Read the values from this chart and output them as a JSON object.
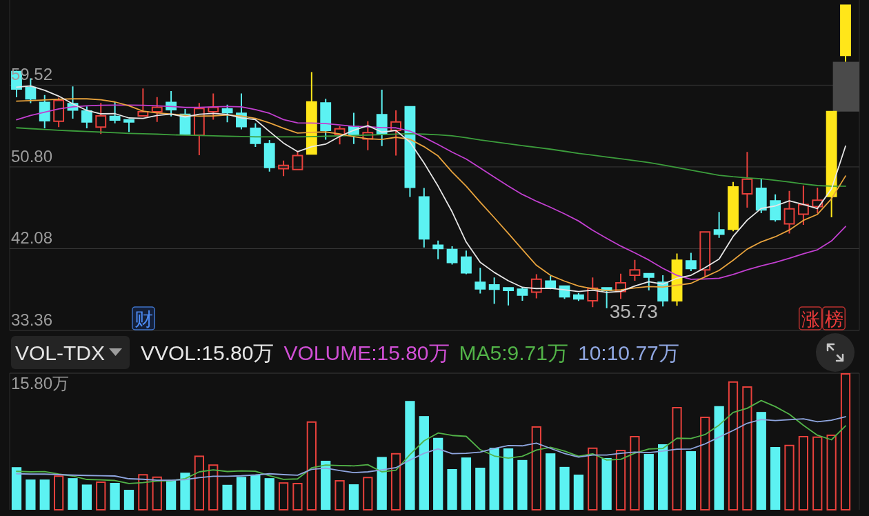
{
  "chart_data": [
    {
      "type": "candlestick",
      "categories": [
        null,
        null,
        null,
        null,
        null,
        null,
        null,
        null,
        null,
        null,
        null,
        null,
        null,
        null,
        null,
        null,
        null,
        null,
        null,
        null,
        null,
        null,
        null,
        null,
        null,
        null,
        null,
        null,
        null,
        null,
        null,
        null,
        null,
        null,
        null,
        null,
        null,
        null,
        null,
        null,
        null,
        null,
        null,
        null,
        null,
        null,
        null,
        null,
        null,
        null,
        null,
        null,
        null,
        null,
        null,
        null,
        null,
        null,
        null,
        null
      ],
      "ohlc": [
        [
          60.96,
          61.05,
          58.22,
          59.11
        ],
        [
          59.27,
          60.25,
          57.6,
          58.06
        ],
        [
          57.67,
          58.47,
          54.92,
          55.72
        ],
        [
          55.67,
          58.19,
          55.04,
          57.89
        ],
        [
          57.55,
          59.38,
          55.95,
          56.86
        ],
        [
          56.75,
          57.25,
          54.92,
          55.6
        ],
        [
          55.04,
          57.62,
          54.3,
          56.24
        ],
        [
          56.18,
          57.71,
          55.45,
          55.79
        ],
        [
          55.81,
          55.81,
          54.53,
          55.59
        ],
        [
          56.24,
          59.16,
          56.22,
          56.68
        ],
        [
          56.68,
          58.24,
          55.6,
          57.16
        ],
        [
          57.67,
          58.88,
          56.18,
          56.91
        ],
        [
          56.41,
          56.98,
          54.23,
          54.3
        ],
        [
          54.18,
          57.62,
          52.05,
          57.03
        ],
        [
          56.68,
          58.63,
          55.83,
          57.14
        ],
        [
          56.98,
          57.44,
          55.56,
          56.59
        ],
        [
          56.52,
          58.63,
          54.8,
          55.1
        ],
        [
          54.92,
          55.45,
          52.93,
          53.32
        ],
        [
          53.27,
          53.66,
          50.3,
          50.75
        ],
        [
          50.61,
          51.48,
          49.82,
          50.96
        ],
        [
          50.52,
          52.51,
          50.52,
          52.01
        ],
        [
          52.17,
          60.91,
          52.17,
          57.73
        ],
        [
          57.62,
          58.06,
          53.7,
          54.69
        ],
        [
          54.23,
          55.14,
          53.2,
          54.87
        ],
        [
          55.1,
          56.57,
          53.25,
          54.23
        ],
        [
          53.77,
          55.67,
          52.58,
          54.46
        ],
        [
          56.36,
          59.04,
          53.02,
          54.3
        ],
        [
          54.69,
          56.82,
          52.01,
          55.6
        ],
        [
          57.21,
          57.21,
          47.59,
          48.62
        ],
        [
          47.59,
          48.55,
          42.21,
          43.13
        ],
        [
          42.44,
          42.95,
          40.96,
          42.1
        ],
        [
          41.99,
          42.33,
          40.38,
          40.61
        ],
        [
          41.18,
          41.87,
          39.35,
          39.51
        ],
        [
          38.5,
          40.04,
          37.29,
          37.8
        ],
        [
          38.21,
          39.0,
          36.19,
          37.75
        ],
        [
          37.91,
          37.91,
          36.03,
          37.63
        ],
        [
          37.75,
          37.93,
          36.53,
          37.13
        ],
        [
          37.45,
          39.35,
          36.79,
          38.83
        ],
        [
          38.62,
          39.17,
          37.75,
          37.93
        ],
        [
          38.09,
          38.09,
          36.72,
          36.95
        ],
        [
          37.13,
          37.34,
          36.51,
          36.72
        ],
        [
          36.53,
          39.0,
          35.85,
          37.87
        ],
        [
          37.91,
          37.91,
          35.73,
          37.63
        ],
        [
          37.52,
          39.42,
          36.72,
          38.43
        ],
        [
          39.24,
          40.89,
          38.66,
          39.81
        ],
        [
          39.42,
          39.42,
          37.63,
          39.05
        ],
        [
          38.5,
          39.24,
          35.92,
          36.53
        ],
        [
          36.53,
          41.57,
          35.99,
          40.84
        ],
        [
          40.77,
          41.64,
          39.69,
          39.97
        ],
        [
          39.81,
          43.86,
          39.12,
          43.86
        ],
        [
          44.09,
          45.99,
          43.24,
          43.63
        ],
        [
          44.16,
          49.2,
          43.93,
          48.67
        ],
        [
          47.93,
          52.4,
          46.45,
          49.49
        ],
        [
          48.51,
          49.54,
          45.87,
          46.22
        ],
        [
          47.18,
          47.87,
          44.96,
          45.19
        ],
        [
          44.73,
          48.24,
          43.7,
          46.33
        ],
        [
          45.76,
          48.81,
          44.62,
          46.79
        ],
        [
          46.56,
          48.58,
          45.87,
          47.25
        ],
        [
          47.66,
          56.7,
          45.42,
          56.7
        ],
        [
          62.7,
          68.04,
          62.01,
          68.04
        ]
      ],
      "colors": [
        "#5cf2f2",
        "#5cf2f2",
        "#5cf2f2",
        "#e8413c",
        "#5cf2f2",
        "#5cf2f2",
        "#e8413c",
        "#5cf2f2",
        "#5cf2f2",
        "#e8413c",
        "#e8413c",
        "#5cf2f2",
        "#5cf2f2",
        "#e8413c",
        "#e8413c",
        "#5cf2f2",
        "#5cf2f2",
        "#5cf2f2",
        "#5cf2f2",
        "#e8413c",
        "#e8413c",
        "#ffe61a",
        "#5cf2f2",
        "#e8413c",
        "#5cf2f2",
        "#e8413c",
        "#5cf2f2",
        "#e8413c",
        "#5cf2f2",
        "#5cf2f2",
        "#5cf2f2",
        "#5cf2f2",
        "#5cf2f2",
        "#5cf2f2",
        "#5cf2f2",
        "#5cf2f2",
        "#5cf2f2",
        "#e8413c",
        "#5cf2f2",
        "#5cf2f2",
        "#5cf2f2",
        "#e8413c",
        "#5cf2f2",
        "#e8413c",
        "#e8413c",
        "#5cf2f2",
        "#5cf2f2",
        "#ffe61a",
        "#5cf2f2",
        "#e8413c",
        "#5cf2f2",
        "#ffe61a",
        "#e8413c",
        "#5cf2f2",
        "#5cf2f2",
        "#e8413c",
        "#e8413c",
        "#e8413c",
        "#ffe61a",
        "#ffe61a"
      ],
      "series": [
        {
          "type": "line",
          "color": "#3c9d3c",
          "values": [
            54.97,
            54.88,
            54.8,
            54.71,
            54.64,
            54.58,
            54.51,
            54.44,
            54.38,
            54.33,
            54.29,
            54.23,
            54.19,
            54.15,
            54.11,
            54.07,
            54.04,
            54.01,
            54.01,
            54.01,
            54.01,
            54.03,
            54.07,
            54.11,
            54.15,
            54.2,
            54.25,
            54.3,
            54.33,
            54.29,
            54.23,
            54.11,
            53.92,
            53.68,
            53.48,
            53.27,
            53.06,
            52.88,
            52.69,
            52.47,
            52.24,
            52.05,
            51.86,
            51.67,
            51.47,
            51.26,
            51.0,
            50.73,
            50.45,
            50.18,
            49.91,
            49.75,
            49.63,
            49.53,
            49.37,
            49.18,
            48.99,
            48.81,
            48.74,
            48.74
          ]
        },
        {
          "type": "line",
          "color": "#c23fd0",
          "values": [
            55.83,
            56.29,
            56.64,
            56.98,
            57.21,
            57.32,
            57.37,
            57.39,
            57.39,
            57.37,
            57.32,
            57.25,
            57.14,
            57.14,
            57.21,
            57.25,
            57.21,
            56.91,
            56.52,
            55.84,
            55.49,
            55.47,
            55.42,
            55.27,
            55.13,
            55.08,
            54.98,
            54.97,
            54.62,
            53.95,
            53.19,
            52.38,
            51.64,
            50.68,
            49.71,
            48.76,
            47.86,
            47.14,
            46.49,
            45.79,
            45.03,
            44.04,
            43.18,
            42.36,
            41.64,
            40.87,
            39.98,
            39.24,
            38.81,
            38.85,
            38.92,
            39.33,
            39.83,
            40.25,
            40.62,
            41.05,
            41.54,
            41.96,
            42.9,
            44.45
          ]
        },
        {
          "type": "line",
          "color": "#e8a33d",
          "values": [
            57.82,
            57.87,
            57.94,
            58.01,
            58.06,
            58.06,
            57.96,
            57.73,
            57.32,
            56.75,
            56.56,
            56.44,
            56.3,
            56.22,
            56.24,
            56.34,
            56.23,
            55.98,
            55.5,
            54.93,
            54.41,
            54.49,
            54.53,
            54.32,
            54.03,
            53.81,
            53.73,
            53.96,
            53.75,
            52.96,
            51.97,
            50.26,
            48.74,
            47.04,
            45.39,
            43.71,
            41.99,
            40.31,
            39.24,
            38.62,
            38.09,
            37.81,
            37.62,
            37.69,
            37.89,
            38.04,
            37.98,
            38.18,
            38.38,
            39.07,
            39.76,
            40.84,
            42.03,
            42.81,
            43.35,
            44.07,
            45.1,
            45.74,
            47.41,
            49.83
          ]
        },
        {
          "type": "line",
          "color": "#e6e6e6",
          "values": [
            59.31,
            59.43,
            58.97,
            58.35,
            57.53,
            56.83,
            56.46,
            56.48,
            56.02,
            55.98,
            56.29,
            56.43,
            56.13,
            56.42,
            56.51,
            56.39,
            56.03,
            55.84,
            54.58,
            53.34,
            52.43,
            52.95,
            53.23,
            54.05,
            54.71,
            55.2,
            54.51,
            54.69,
            53.44,
            51.22,
            48.75,
            46.01,
            42.79,
            40.63,
            39.55,
            38.66,
            37.96,
            37.83,
            37.85,
            37.69,
            37.51,
            37.66,
            37.42,
            37.52,
            38.09,
            38.56,
            38.29,
            38.93,
            39.24,
            40.05,
            40.97,
            43.39,
            45.12,
            46.37,
            46.64,
            47.18,
            46.8,
            46.36,
            48.45,
            53.02
          ]
        }
      ],
      "ylim": [
        33.36,
        68.6
      ],
      "yticks": [
        59.52,
        {
          "value": 50.8,
          "label": "50.80"
        },
        42.08,
        33.36
      ],
      "grid": "y",
      "annotations": [
        "财",
        "涨榜",
        "35.73"
      ]
    },
    {
      "type": "bar",
      "title": "VOL-TDX",
      "legend_title": "VVOL:15.80万",
      "legend": "top",
      "categories": [
        null,
        null,
        null,
        null,
        null,
        null,
        null,
        null,
        null,
        null,
        null,
        null,
        null,
        null,
        null,
        null,
        null,
        null,
        null,
        null,
        null,
        null,
        null,
        null,
        null,
        null,
        null,
        null,
        null,
        null,
        null,
        null,
        null,
        null,
        null,
        null,
        null,
        null,
        null,
        null,
        null,
        null,
        null,
        null,
        null,
        null,
        null,
        null,
        null,
        null,
        null,
        null,
        null,
        null,
        null,
        null,
        null,
        null,
        null,
        null
      ],
      "series": [
        {
          "name": "VOLUME:15.80万",
          "type": "bar",
          "color": "#d04fd4",
          "colors": [
            "#5cf2f2",
            "#5cf2f2",
            "#5cf2f2",
            "#e8413c",
            "#5cf2f2",
            "#5cf2f2",
            "#e8413c",
            "#5cf2f2",
            "#5cf2f2",
            "#e8413c",
            "#e8413c",
            "#5cf2f2",
            "#5cf2f2",
            "#e8413c",
            "#e8413c",
            "#5cf2f2",
            "#5cf2f2",
            "#5cf2f2",
            "#5cf2f2",
            "#e8413c",
            "#e8413c",
            "#e8413c",
            "#5cf2f2",
            "#e8413c",
            "#5cf2f2",
            "#e8413c",
            "#5cf2f2",
            "#e8413c",
            "#5cf2f2",
            "#5cf2f2",
            "#5cf2f2",
            "#5cf2f2",
            "#5cf2f2",
            "#5cf2f2",
            "#5cf2f2",
            "#5cf2f2",
            "#5cf2f2",
            "#e8413c",
            "#5cf2f2",
            "#5cf2f2",
            "#5cf2f2",
            "#e8413c",
            "#5cf2f2",
            "#e8413c",
            "#e8413c",
            "#5cf2f2",
            "#5cf2f2",
            "#e8413c",
            "#5cf2f2",
            "#e8413c",
            "#5cf2f2",
            "#e8413c",
            "#e8413c",
            "#5cf2f2",
            "#5cf2f2",
            "#e8413c",
            "#e8413c",
            "#e8413c",
            "#e8413c",
            "#e8413c"
          ],
          "values": [
            4.93,
            3.5,
            3.5,
            3.97,
            3.66,
            2.92,
            3.27,
            3.11,
            2.31,
            4.13,
            3.85,
            3.43,
            4.29,
            6.27,
            5.25,
            2.89,
            3.81,
            4.07,
            3.66,
            3.18,
            3.11,
            10.23,
            5.67,
            3.43,
            2.95,
            3.81,
            6.11,
            6.56,
            12.59,
            10.84,
            8.32,
            4.71,
            6.05,
            4.87,
            7.17,
            7.1,
            5.76,
            9.66,
            6.53,
            4.96,
            4.07,
            7.2,
            5.99,
            6.94,
            8.54,
            6.46,
            7.58,
            11.89,
            6.78,
            10.77,
            11.99,
            14.86,
            14.28,
            11.32,
            7.26,
            7.52,
            8.54,
            8.48,
            8.7,
            15.8
          ]
        },
        {
          "name": "MA5:9.71万",
          "type": "line",
          "color": "#52b348",
          "values": [
            4.45,
            4.39,
            4.42,
            4.13,
            3.91,
            3.51,
            3.46,
            3.39,
            3.05,
            3.15,
            3.33,
            3.37,
            3.6,
            4.39,
            4.62,
            4.43,
            4.5,
            4.46,
            3.94,
            3.52,
            3.57,
            4.85,
            5.17,
            5.12,
            5.08,
            5.22,
            4.39,
            4.57,
            6.4,
            7.98,
            8.88,
            8.6,
            8.5,
            6.96,
            6.22,
            5.98,
            6.19,
            6.91,
            7.24,
            6.8,
            6.2,
            6.48,
            5.75,
            5.83,
            6.55,
            7.03,
            7.1,
            8.28,
            8.25,
            8.7,
            9.8,
            11.26,
            11.74,
            12.64,
            11.94,
            11.05,
            9.78,
            8.62,
            8.1,
            9.71
          ]
        },
        {
          "name": "10:10.77万",
          "type": "line",
          "color": "#8fa6e0",
          "values": [
            4.17,
            4.13,
            4.13,
            4.07,
            4.01,
            3.97,
            3.94,
            3.91,
            3.59,
            3.53,
            3.42,
            3.42,
            3.49,
            3.72,
            3.88,
            3.88,
            3.93,
            4.03,
            4.17,
            4.07,
            4.0,
            4.68,
            4.81,
            4.53,
            4.3,
            4.39,
            4.62,
            4.87,
            5.76,
            6.53,
            7.05,
            6.5,
            6.54,
            6.68,
            7.1,
            7.43,
            7.4,
            7.71,
            7.1,
            6.51,
            6.09,
            6.34,
            6.33,
            6.54,
            6.68,
            6.61,
            6.79,
            7.02,
            7.04,
            7.62,
            8.41,
            9.18,
            10.01,
            10.45,
            10.32,
            10.43,
            10.52,
            10.18,
            10.37,
            10.77
          ]
        }
      ],
      "ylim": [
        0,
        15.8
      ],
      "yticks": [
        {
          "value": 15.8,
          "label": "15.80万"
        }
      ]
    }
  ]
}
